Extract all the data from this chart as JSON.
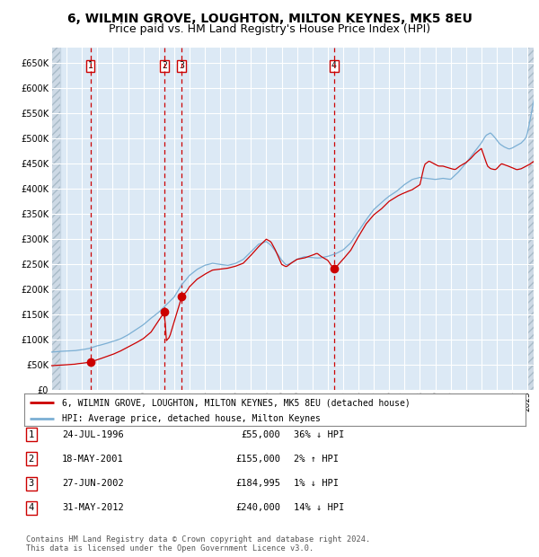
{
  "title": "6, WILMIN GROVE, LOUGHTON, MILTON KEYNES, MK5 8EU",
  "subtitle": "Price paid vs. HM Land Registry's House Price Index (HPI)",
  "legend_label_red": "6, WILMIN GROVE, LOUGHTON, MILTON KEYNES, MK5 8EU (detached house)",
  "legend_label_blue": "HPI: Average price, detached house, Milton Keynes",
  "footer": "Contains HM Land Registry data © Crown copyright and database right 2024.\nThis data is licensed under the Open Government Licence v3.0.",
  "sales": [
    {
      "num": 1,
      "date": "24-JUL-1996",
      "price": "£55,000",
      "hpi_diff": "36% ↓ HPI",
      "year_float": 1996.55
    },
    {
      "num": 2,
      "date": "18-MAY-2001",
      "price": "£155,000",
      "hpi_diff": "2% ↑ HPI",
      "year_float": 2001.37
    },
    {
      "num": 3,
      "date": "27-JUN-2002",
      "price": "£184,995",
      "hpi_diff": "1% ↓ HPI",
      "year_float": 2002.49
    },
    {
      "num": 4,
      "date": "31-MAY-2012",
      "price": "£240,000",
      "hpi_diff": "14% ↓ HPI",
      "year_float": 2012.41
    }
  ],
  "sales_prices": [
    55000,
    155000,
    184995,
    240000
  ],
  "ylim": [
    0,
    680000
  ],
  "yticks": [
    0,
    50000,
    100000,
    150000,
    200000,
    250000,
    300000,
    350000,
    400000,
    450000,
    500000,
    550000,
    600000,
    650000
  ],
  "bg_color": "#dce9f5",
  "grid_color": "#ffffff",
  "red_line_color": "#cc0000",
  "blue_line_color": "#7bafd4",
  "title_fontsize": 10,
  "subtitle_fontsize": 9
}
